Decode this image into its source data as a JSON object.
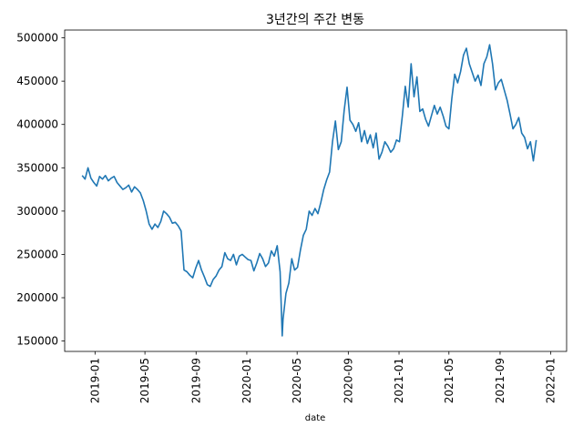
{
  "chart_data": {
    "type": "line",
    "title": "3년간의 주간 변동",
    "xlabel": "date",
    "ylabel": "",
    "xlim": [
      "2018-10-20",
      "2022-02-08"
    ],
    "ylim": [
      138000,
      509000
    ],
    "grid": false,
    "legend": "none",
    "x_ticks": [
      "2019-01",
      "2019-05",
      "2019-09",
      "2020-01",
      "2020-05",
      "2020-09",
      "2021-01",
      "2021-05",
      "2021-09",
      "2022-01"
    ],
    "y_ticks": [
      150000,
      200000,
      250000,
      300000,
      350000,
      400000,
      450000,
      500000
    ],
    "y_tick_labels": [
      "150000",
      "200000",
      "250000",
      "300000",
      "350000",
      "400000",
      "450000",
      "500000"
    ],
    "series": [
      {
        "color": "#1f77b4",
        "points": [
          [
            "2018-12-01",
            341000
          ],
          [
            "2018-12-08",
            337000
          ],
          [
            "2018-12-15",
            350000
          ],
          [
            "2018-12-22",
            338000
          ],
          [
            "2018-12-29",
            333000
          ],
          [
            "2019-01-05",
            329000
          ],
          [
            "2019-01-12",
            340000
          ],
          [
            "2019-01-19",
            337000
          ],
          [
            "2019-01-26",
            341000
          ],
          [
            "2019-02-02",
            335000
          ],
          [
            "2019-02-09",
            338000
          ],
          [
            "2019-02-16",
            340000
          ],
          [
            "2019-02-23",
            333000
          ],
          [
            "2019-03-02",
            329000
          ],
          [
            "2019-03-09",
            325000
          ],
          [
            "2019-03-16",
            327000
          ],
          [
            "2019-03-23",
            330000
          ],
          [
            "2019-03-30",
            322000
          ],
          [
            "2019-04-06",
            328000
          ],
          [
            "2019-04-13",
            325000
          ],
          [
            "2019-04-20",
            321000
          ],
          [
            "2019-04-27",
            312000
          ],
          [
            "2019-05-04",
            300000
          ],
          [
            "2019-05-11",
            285000
          ],
          [
            "2019-05-18",
            279000
          ],
          [
            "2019-05-25",
            285000
          ],
          [
            "2019-06-01",
            281000
          ],
          [
            "2019-06-08",
            288000
          ],
          [
            "2019-06-15",
            300000
          ],
          [
            "2019-06-22",
            297000
          ],
          [
            "2019-06-29",
            293000
          ],
          [
            "2019-07-06",
            286000
          ],
          [
            "2019-07-13",
            287000
          ],
          [
            "2019-07-20",
            283000
          ],
          [
            "2019-07-27",
            277000
          ],
          [
            "2019-08-03",
            232000
          ],
          [
            "2019-08-10",
            230000
          ],
          [
            "2019-08-17",
            226000
          ],
          [
            "2019-08-24",
            223000
          ],
          [
            "2019-08-31",
            234000
          ],
          [
            "2019-09-07",
            243000
          ],
          [
            "2019-09-14",
            232000
          ],
          [
            "2019-09-21",
            224000
          ],
          [
            "2019-09-28",
            215000
          ],
          [
            "2019-10-05",
            213000
          ],
          [
            "2019-10-12",
            221000
          ],
          [
            "2019-10-19",
            225000
          ],
          [
            "2019-10-26",
            232000
          ],
          [
            "2019-11-02",
            236000
          ],
          [
            "2019-11-09",
            252000
          ],
          [
            "2019-11-16",
            245000
          ],
          [
            "2019-11-23",
            243000
          ],
          [
            "2019-11-30",
            250000
          ],
          [
            "2019-12-07",
            238000
          ],
          [
            "2019-12-14",
            248000
          ],
          [
            "2019-12-21",
            250000
          ],
          [
            "2019-12-28",
            247000
          ],
          [
            "2020-01-04",
            244000
          ],
          [
            "2020-01-11",
            243000
          ],
          [
            "2020-01-18",
            231000
          ],
          [
            "2020-01-25",
            240000
          ],
          [
            "2020-02-01",
            251000
          ],
          [
            "2020-02-08",
            245000
          ],
          [
            "2020-02-15",
            236000
          ],
          [
            "2020-02-22",
            240000
          ],
          [
            "2020-02-29",
            254000
          ],
          [
            "2020-03-07",
            248000
          ],
          [
            "2020-03-14",
            260000
          ],
          [
            "2020-03-21",
            230000
          ],
          [
            "2020-03-26",
            156000
          ],
          [
            "2020-03-28",
            175000
          ],
          [
            "2020-04-04",
            205000
          ],
          [
            "2020-04-11",
            217000
          ],
          [
            "2020-04-18",
            245000
          ],
          [
            "2020-04-25",
            232000
          ],
          [
            "2020-05-02",
            235000
          ],
          [
            "2020-05-09",
            255000
          ],
          [
            "2020-05-16",
            272000
          ],
          [
            "2020-05-23",
            279000
          ],
          [
            "2020-05-30",
            300000
          ],
          [
            "2020-06-06",
            295000
          ],
          [
            "2020-06-13",
            303000
          ],
          [
            "2020-06-20",
            297000
          ],
          [
            "2020-06-27",
            310000
          ],
          [
            "2020-07-04",
            325000
          ],
          [
            "2020-07-11",
            336000
          ],
          [
            "2020-07-18",
            345000
          ],
          [
            "2020-07-25",
            380000
          ],
          [
            "2020-08-01",
            404000
          ],
          [
            "2020-08-08",
            371000
          ],
          [
            "2020-08-15",
            380000
          ],
          [
            "2020-08-22",
            416000
          ],
          [
            "2020-08-29",
            443000
          ],
          [
            "2020-09-05",
            405000
          ],
          [
            "2020-09-12",
            400000
          ],
          [
            "2020-09-19",
            392000
          ],
          [
            "2020-09-26",
            402000
          ],
          [
            "2020-10-03",
            380000
          ],
          [
            "2020-10-10",
            393000
          ],
          [
            "2020-10-17",
            378000
          ],
          [
            "2020-10-24",
            388000
          ],
          [
            "2020-10-31",
            373000
          ],
          [
            "2020-11-07",
            390000
          ],
          [
            "2020-11-14",
            360000
          ],
          [
            "2020-11-21",
            368000
          ],
          [
            "2020-11-28",
            380000
          ],
          [
            "2020-12-05",
            375000
          ],
          [
            "2020-12-12",
            368000
          ],
          [
            "2020-12-19",
            372000
          ],
          [
            "2020-12-26",
            382000
          ],
          [
            "2021-01-02",
            380000
          ],
          [
            "2021-01-09",
            410000
          ],
          [
            "2021-01-16",
            444000
          ],
          [
            "2021-01-23",
            420000
          ],
          [
            "2021-01-30",
            470000
          ],
          [
            "2021-02-06",
            432000
          ],
          [
            "2021-02-13",
            455000
          ],
          [
            "2021-02-20",
            415000
          ],
          [
            "2021-02-27",
            418000
          ],
          [
            "2021-03-06",
            406000
          ],
          [
            "2021-03-13",
            398000
          ],
          [
            "2021-03-20",
            410000
          ],
          [
            "2021-03-27",
            422000
          ],
          [
            "2021-04-03",
            412000
          ],
          [
            "2021-04-10",
            420000
          ],
          [
            "2021-04-17",
            410000
          ],
          [
            "2021-04-24",
            398000
          ],
          [
            "2021-05-01",
            395000
          ],
          [
            "2021-05-08",
            430000
          ],
          [
            "2021-05-15",
            458000
          ],
          [
            "2021-05-22",
            448000
          ],
          [
            "2021-05-29",
            461000
          ],
          [
            "2021-06-05",
            480000
          ],
          [
            "2021-06-12",
            488000
          ],
          [
            "2021-06-19",
            470000
          ],
          [
            "2021-06-26",
            460000
          ],
          [
            "2021-07-03",
            450000
          ],
          [
            "2021-07-10",
            457000
          ],
          [
            "2021-07-17",
            445000
          ],
          [
            "2021-07-24",
            470000
          ],
          [
            "2021-07-31",
            478000
          ],
          [
            "2021-08-07",
            492000
          ],
          [
            "2021-08-14",
            470000
          ],
          [
            "2021-08-21",
            440000
          ],
          [
            "2021-08-28",
            448000
          ],
          [
            "2021-09-04",
            452000
          ],
          [
            "2021-09-11",
            440000
          ],
          [
            "2021-09-18",
            428000
          ],
          [
            "2021-09-25",
            412000
          ],
          [
            "2021-10-02",
            395000
          ],
          [
            "2021-10-09",
            400000
          ],
          [
            "2021-10-16",
            408000
          ],
          [
            "2021-10-23",
            390000
          ],
          [
            "2021-10-30",
            385000
          ],
          [
            "2021-11-06",
            372000
          ],
          [
            "2021-11-13",
            380000
          ],
          [
            "2021-11-20",
            358000
          ],
          [
            "2021-11-27",
            382000
          ]
        ]
      }
    ]
  }
}
